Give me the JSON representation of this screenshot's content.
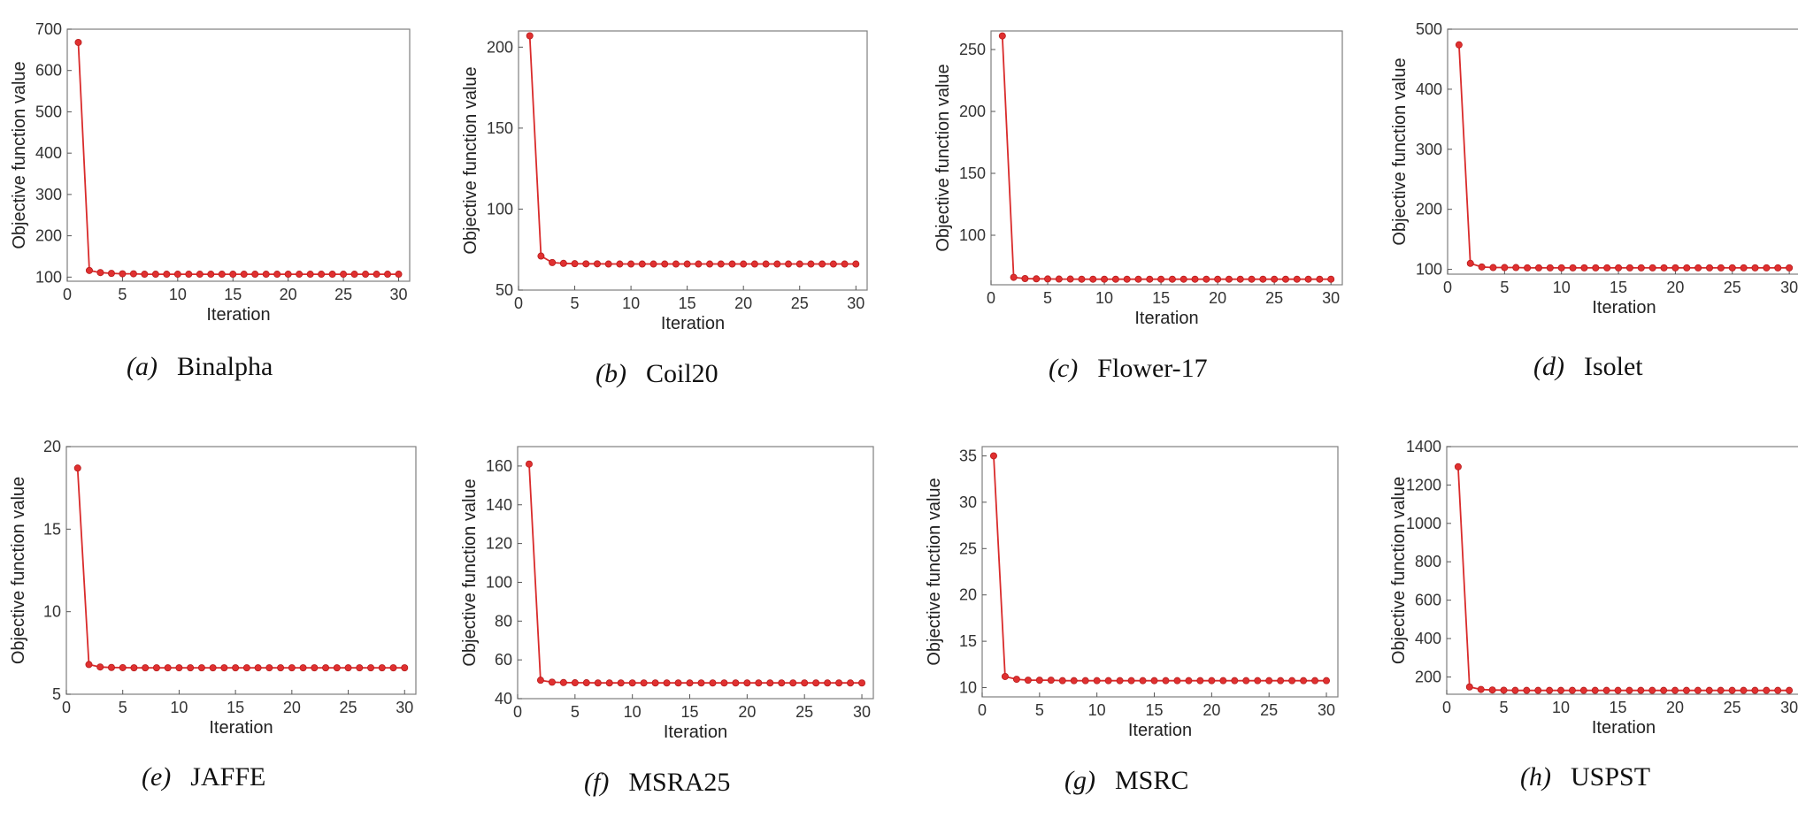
{
  "figure": {
    "series_color": "#d92b2b",
    "marker_color": "#e03030"
  },
  "chart_data": [
    {
      "type": "line",
      "caption_letter": "(a)",
      "caption_name": "Binalpha",
      "xlabel": "Iteration",
      "ylabel": "Objective function value",
      "xlim": [
        0,
        31
      ],
      "ylim": [
        90,
        700
      ],
      "xticks": [
        0,
        5,
        10,
        15,
        20,
        25,
        30
      ],
      "yticks": [
        100,
        200,
        300,
        400,
        500,
        600,
        700
      ],
      "x": [
        1,
        2,
        3,
        4,
        5,
        6,
        7,
        8,
        9,
        10,
        11,
        12,
        13,
        14,
        15,
        16,
        17,
        18,
        19,
        20,
        21,
        22,
        23,
        24,
        25,
        26,
        27,
        28,
        29,
        30
      ],
      "values": [
        668,
        116,
        111,
        109,
        108,
        108,
        107,
        107,
        107,
        107,
        107,
        107,
        107,
        107,
        107,
        107,
        107,
        107,
        107,
        107,
        107,
        107,
        107,
        107,
        107,
        107,
        107,
        107,
        107,
        107
      ]
    },
    {
      "type": "line",
      "caption_letter": "(b)",
      "caption_name": "Coil20",
      "xlabel": "Iteration",
      "ylabel": "Objective function value",
      "xlim": [
        0,
        31
      ],
      "ylim": [
        50,
        210
      ],
      "xticks": [
        0,
        5,
        10,
        15,
        20,
        25,
        30
      ],
      "yticks": [
        50,
        100,
        150,
        200
      ],
      "x": [
        1,
        2,
        3,
        4,
        5,
        6,
        7,
        8,
        9,
        10,
        11,
        12,
        13,
        14,
        15,
        16,
        17,
        18,
        19,
        20,
        21,
        22,
        23,
        24,
        25,
        26,
        27,
        28,
        29,
        30
      ],
      "values": [
        207,
        71,
        67,
        66.5,
        66.3,
        66.2,
        66.2,
        66.1,
        66.1,
        66.1,
        66.1,
        66.1,
        66.1,
        66.1,
        66.1,
        66.1,
        66.1,
        66.1,
        66.1,
        66.1,
        66.1,
        66.1,
        66.1,
        66.1,
        66.1,
        66.1,
        66.1,
        66.1,
        66.1,
        66.1
      ]
    },
    {
      "type": "line",
      "caption_letter": "(c)",
      "caption_name": "Flower-17",
      "xlabel": "Iteration",
      "ylabel": "Objective function value",
      "xlim": [
        0,
        31
      ],
      "ylim": [
        60,
        265
      ],
      "xticks": [
        0,
        5,
        10,
        15,
        20,
        25,
        30
      ],
      "yticks": [
        100,
        150,
        200,
        250
      ],
      "x": [
        1,
        2,
        3,
        4,
        5,
        6,
        7,
        8,
        9,
        10,
        11,
        12,
        13,
        14,
        15,
        16,
        17,
        18,
        19,
        20,
        21,
        22,
        23,
        24,
        25,
        26,
        27,
        28,
        29,
        30
      ],
      "values": [
        261,
        66,
        65,
        64.8,
        64.7,
        64.6,
        64.6,
        64.5,
        64.5,
        64.5,
        64.5,
        64.5,
        64.5,
        64.5,
        64.5,
        64.5,
        64.5,
        64.5,
        64.5,
        64.5,
        64.5,
        64.5,
        64.5,
        64.5,
        64.5,
        64.5,
        64.5,
        64.5,
        64.5,
        64.5
      ]
    },
    {
      "type": "line",
      "caption_letter": "(d)",
      "caption_name": "Isolet",
      "xlabel": "Iteration",
      "ylabel": "Objective function value",
      "xlim": [
        0,
        31
      ],
      "ylim": [
        92,
        500
      ],
      "xticks": [
        0,
        5,
        10,
        15,
        20,
        25,
        30
      ],
      "yticks": [
        100,
        200,
        300,
        400,
        500
      ],
      "x": [
        1,
        2,
        3,
        4,
        5,
        6,
        7,
        8,
        9,
        10,
        11,
        12,
        13,
        14,
        15,
        16,
        17,
        18,
        19,
        20,
        21,
        22,
        23,
        24,
        25,
        26,
        27,
        28,
        29,
        30
      ],
      "values": [
        474,
        110,
        104,
        103,
        103,
        103,
        102.5,
        102.5,
        102.5,
        102.5,
        102.5,
        102.5,
        102.5,
        102.5,
        102.5,
        102.5,
        102.5,
        102.5,
        102.5,
        102.5,
        102.5,
        102.5,
        102.5,
        102.5,
        102.5,
        102.5,
        102.5,
        102.5,
        102.5,
        102.5
      ]
    },
    {
      "type": "line",
      "caption_letter": "(e)",
      "caption_name": "JAFFE",
      "xlabel": "Iteration",
      "ylabel": "Objective function value",
      "xlim": [
        0,
        31
      ],
      "ylim": [
        5,
        20
      ],
      "xticks": [
        0,
        5,
        10,
        15,
        20,
        25,
        30
      ],
      "yticks": [
        5,
        10,
        15,
        20
      ],
      "x": [
        1,
        2,
        3,
        4,
        5,
        6,
        7,
        8,
        9,
        10,
        11,
        12,
        13,
        14,
        15,
        16,
        17,
        18,
        19,
        20,
        21,
        22,
        23,
        24,
        25,
        26,
        27,
        28,
        29,
        30
      ],
      "values": [
        18.7,
        6.8,
        6.65,
        6.62,
        6.61,
        6.6,
        6.6,
        6.6,
        6.6,
        6.6,
        6.6,
        6.6,
        6.6,
        6.6,
        6.6,
        6.6,
        6.6,
        6.6,
        6.6,
        6.6,
        6.6,
        6.6,
        6.6,
        6.6,
        6.6,
        6.6,
        6.6,
        6.6,
        6.6,
        6.6
      ]
    },
    {
      "type": "line",
      "caption_letter": "(f)",
      "caption_name": "MSRA25",
      "xlabel": "Iteration",
      "ylabel": "Objective function value",
      "xlim": [
        0,
        31
      ],
      "ylim": [
        40,
        170
      ],
      "xticks": [
        0,
        5,
        10,
        15,
        20,
        25,
        30
      ],
      "yticks": [
        40,
        60,
        80,
        100,
        120,
        140,
        160
      ],
      "x": [
        1,
        2,
        3,
        4,
        5,
        6,
        7,
        8,
        9,
        10,
        11,
        12,
        13,
        14,
        15,
        16,
        17,
        18,
        19,
        20,
        21,
        22,
        23,
        24,
        25,
        26,
        27,
        28,
        29,
        30
      ],
      "values": [
        161,
        49.5,
        48.5,
        48.3,
        48.2,
        48.2,
        48.1,
        48.1,
        48.1,
        48.1,
        48.1,
        48.1,
        48.1,
        48.1,
        48.1,
        48.1,
        48.1,
        48.1,
        48.1,
        48.1,
        48.1,
        48.1,
        48.1,
        48.1,
        48.1,
        48.1,
        48.1,
        48.1,
        48.1,
        48.1
      ]
    },
    {
      "type": "line",
      "caption_letter": "(g)",
      "caption_name": "MSRC",
      "xlabel": "Iteration",
      "ylabel": "Objective function value",
      "xlim": [
        0,
        31
      ],
      "ylim": [
        9,
        36
      ],
      "xticks": [
        0,
        5,
        10,
        15,
        20,
        25,
        30
      ],
      "yticks": [
        10,
        15,
        20,
        25,
        30,
        35
      ],
      "x": [
        1,
        2,
        3,
        4,
        5,
        6,
        7,
        8,
        9,
        10,
        11,
        12,
        13,
        14,
        15,
        16,
        17,
        18,
        19,
        20,
        21,
        22,
        23,
        24,
        25,
        26,
        27,
        28,
        29,
        30
      ],
      "values": [
        35,
        11.2,
        10.9,
        10.8,
        10.8,
        10.8,
        10.75,
        10.75,
        10.75,
        10.75,
        10.75,
        10.75,
        10.75,
        10.75,
        10.75,
        10.75,
        10.75,
        10.75,
        10.75,
        10.75,
        10.75,
        10.75,
        10.75,
        10.75,
        10.75,
        10.75,
        10.75,
        10.75,
        10.75,
        10.75
      ]
    },
    {
      "type": "line",
      "caption_letter": "(h)",
      "caption_name": "USPST",
      "xlabel": "Iteration",
      "ylabel": "Objective function value",
      "xlim": [
        0,
        31
      ],
      "ylim": [
        110,
        1400
      ],
      "xticks": [
        0,
        5,
        10,
        15,
        20,
        25,
        30
      ],
      "yticks": [
        200,
        400,
        600,
        800,
        1000,
        1200,
        1400
      ],
      "x": [
        1,
        2,
        3,
        4,
        5,
        6,
        7,
        8,
        9,
        10,
        11,
        12,
        13,
        14,
        15,
        16,
        17,
        18,
        19,
        20,
        21,
        22,
        23,
        24,
        25,
        26,
        27,
        28,
        29,
        30
      ],
      "values": [
        1295,
        148,
        135,
        132,
        131,
        130,
        130,
        130,
        130,
        130,
        130,
        130,
        130,
        130,
        130,
        130,
        130,
        130,
        130,
        130,
        130,
        130,
        130,
        130,
        130,
        130,
        130,
        130,
        130,
        130
      ]
    }
  ]
}
